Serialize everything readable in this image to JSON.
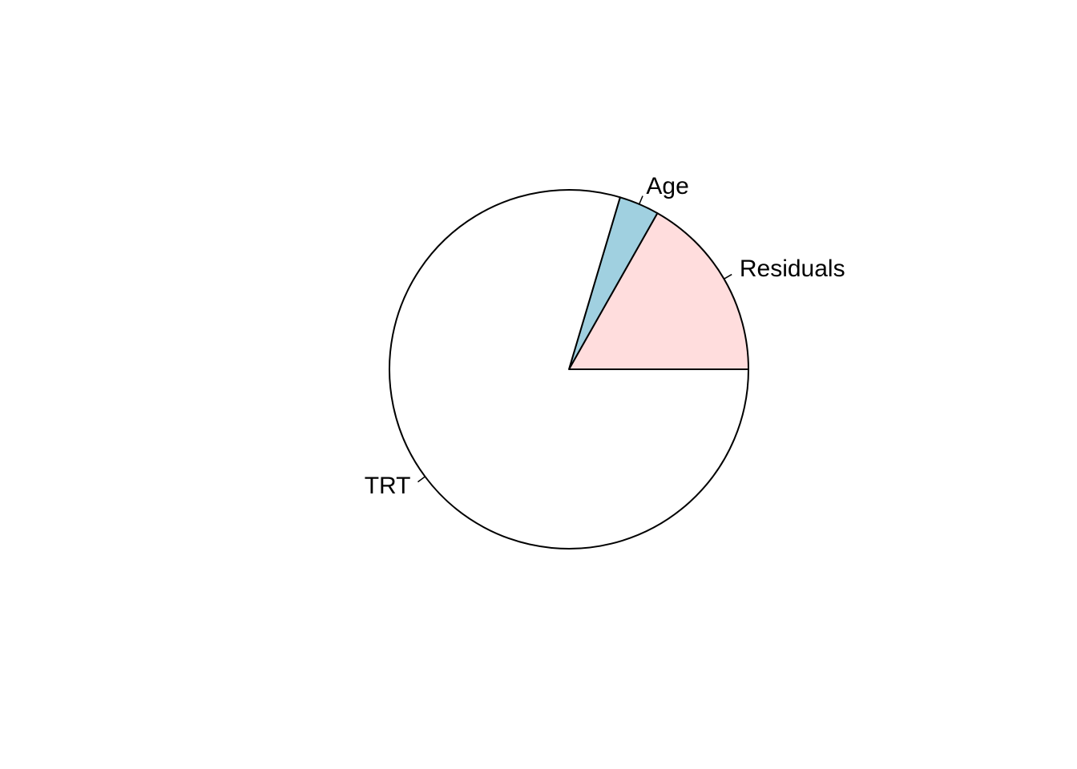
{
  "chart_data": {
    "type": "pie",
    "title": "",
    "slices": [
      {
        "label": "Residuals",
        "value": 16.8,
        "color": "#FFDDDD"
      },
      {
        "label": "Age",
        "value": 3.6,
        "color": "#A0D0E0"
      },
      {
        "label": "TRT",
        "value": 79.6,
        "color": "#FFFFFF"
      }
    ],
    "start_angle_deg": 0,
    "direction": "counterclockwise",
    "outline_color": "#000000"
  }
}
